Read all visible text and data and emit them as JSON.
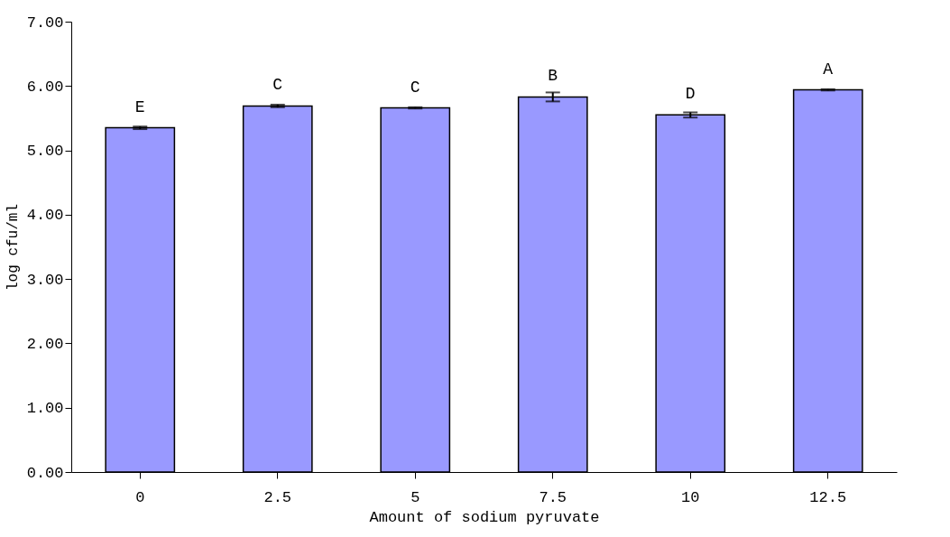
{
  "chart_data": {
    "type": "bar",
    "xlabel": "Amount of sodium pyruvate",
    "ylabel": "log cfu/ml",
    "categories": [
      "0",
      "2.5",
      "5",
      "7.5",
      "10",
      "12.5"
    ],
    "values": [
      5.35,
      5.69,
      5.66,
      5.83,
      5.55,
      5.94
    ],
    "errors": [
      0.02,
      0.02,
      0.01,
      0.07,
      0.04,
      0.01
    ],
    "color": "#9999ff",
    "ylim": [
      0,
      7
    ],
    "yticks": [
      {
        "value": 0,
        "label": "0.00"
      },
      {
        "value": 1,
        "label": "1.00"
      },
      {
        "value": 2,
        "label": "2.00"
      },
      {
        "value": 3,
        "label": "3.00"
      },
      {
        "value": 4,
        "label": "4.00"
      },
      {
        "value": 5,
        "label": "5.00"
      },
      {
        "value": 6,
        "label": "6.00"
      },
      {
        "value": 7,
        "label": "7.00"
      }
    ],
    "annotations": [
      {
        "text": "E",
        "x": "0",
        "y": 5.35
      },
      {
        "text": "C",
        "x": "2.5",
        "y": 5.69
      },
      {
        "text": "C",
        "x": "5",
        "y": 5.66
      },
      {
        "text": "B",
        "x": "7.5",
        "y": 5.83
      },
      {
        "text": "D",
        "x": "10",
        "y": 5.55
      },
      {
        "text": "A",
        "x": "12.5",
        "y": 5.94
      }
    ],
    "grid": false
  }
}
